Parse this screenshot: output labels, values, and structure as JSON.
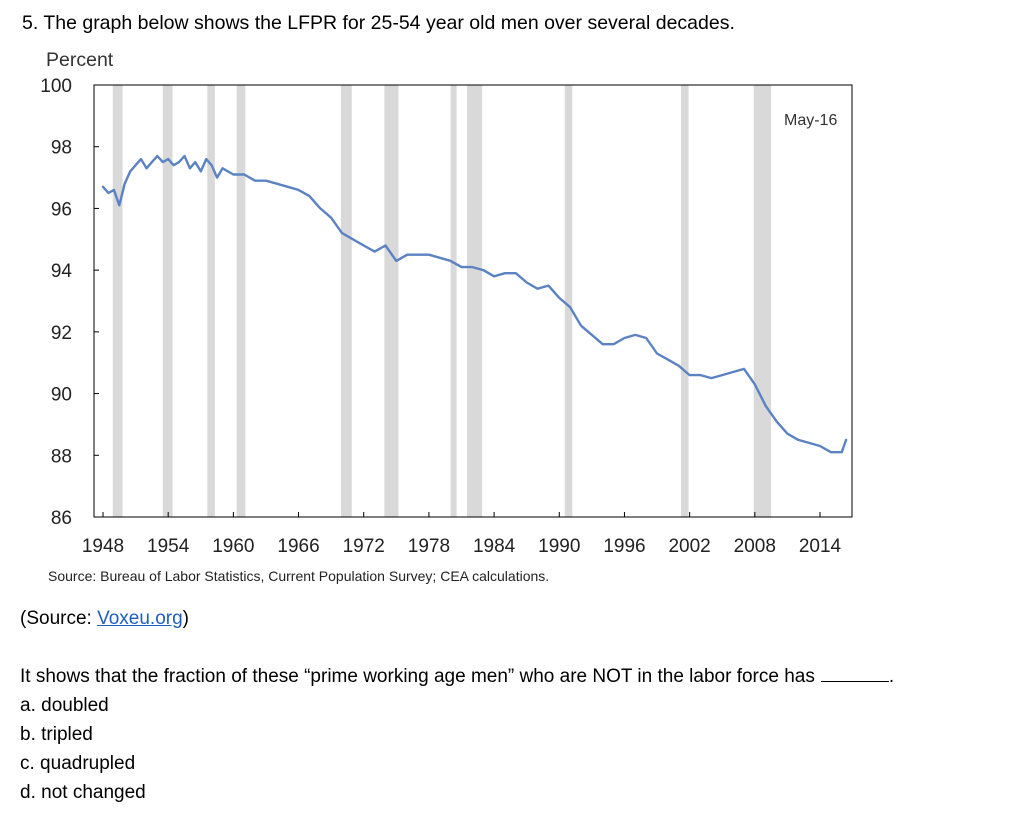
{
  "question": {
    "header": "5. The graph below shows the LFPR for 25-54 year old men over several decades.",
    "source_prefix": "(Source: ",
    "source_link": "Voxeu.org",
    "source_suffix": ")",
    "prompt": "It shows that the fraction of these “prime working age men” who are NOT in the labor force has",
    "prompt_end": ".",
    "choices": [
      "a. doubled",
      "b. tripled",
      "c. quadrupled",
      "d. not changed"
    ]
  },
  "chart_data": {
    "type": "line",
    "ylabel": "Percent",
    "xlabel": "",
    "ylim": [
      86,
      100
    ],
    "xlim": [
      1948,
      2016.5
    ],
    "yticks": [
      "100",
      "98",
      "96",
      "94",
      "92",
      "90",
      "88",
      "86"
    ],
    "xticks": [
      "1948",
      "1954",
      "1960",
      "1966",
      "1972",
      "1978",
      "1984",
      "1990",
      "1996",
      "2002",
      "2008",
      "2014"
    ],
    "annotation": "May-16",
    "source_note": "Source: Bureau of Labor Statistics, Current Population Survey; CEA calculations.",
    "line_color": "#5b83c3",
    "recession_color": "#d9d9d9",
    "recessions": [
      [
        1948.9,
        1949.8
      ],
      [
        1953.5,
        1954.4
      ],
      [
        1957.6,
        1958.3
      ],
      [
        1960.3,
        1961.1
      ],
      [
        1969.9,
        1970.9
      ],
      [
        1973.9,
        1975.2
      ],
      [
        1980.0,
        1980.5
      ],
      [
        1981.5,
        1982.9
      ],
      [
        1990.5,
        1991.2
      ],
      [
        2001.2,
        2001.9
      ],
      [
        2007.9,
        2009.5
      ]
    ],
    "series": [
      {
        "x": [
          1948.0,
          1948.5,
          1949.0,
          1949.5,
          1950.0,
          1950.5,
          1951.0,
          1951.5,
          1952.0,
          1952.5,
          1953.0,
          1953.5,
          1954.0,
          1954.5,
          1955.0,
          1955.5,
          1956.0,
          1956.5,
          1957.0,
          1957.5,
          1958.0,
          1958.5,
          1959.0,
          1960.0,
          1961.0,
          1962.0,
          1963.0,
          1964.0,
          1965.0,
          1966.0,
          1967.0,
          1968.0,
          1969.0,
          1970.0,
          1971.0,
          1972.0,
          1973.0,
          1974.0,
          1975.0,
          1976.0,
          1977.0,
          1978.0,
          1979.0,
          1980.0,
          1981.0,
          1982.0,
          1983.0,
          1984.0,
          1985.0,
          1986.0,
          1987.0,
          1988.0,
          1989.0,
          1990.0,
          1991.0,
          1992.0,
          1993.0,
          1994.0,
          1995.0,
          1996.0,
          1997.0,
          1998.0,
          1999.0,
          2000.0,
          2001.0,
          2002.0,
          2003.0,
          2004.0,
          2005.0,
          2006.0,
          2007.0,
          2008.0,
          2009.0,
          2010.0,
          2011.0,
          2012.0,
          2013.0,
          2014.0,
          2015.0,
          2016.0,
          2016.4
        ],
        "values": [
          96.7,
          96.5,
          96.6,
          96.1,
          96.8,
          97.2,
          97.4,
          97.6,
          97.3,
          97.5,
          97.7,
          97.5,
          97.6,
          97.4,
          97.5,
          97.7,
          97.3,
          97.5,
          97.2,
          97.6,
          97.4,
          97.0,
          97.3,
          97.1,
          97.1,
          96.9,
          96.9,
          96.8,
          96.7,
          96.6,
          96.4,
          96.0,
          95.7,
          95.2,
          95.0,
          94.8,
          94.6,
          94.8,
          94.3,
          94.5,
          94.5,
          94.5,
          94.4,
          94.3,
          94.1,
          94.1,
          94.0,
          93.8,
          93.9,
          93.9,
          93.6,
          93.4,
          93.5,
          93.1,
          92.8,
          92.2,
          91.9,
          91.6,
          91.6,
          91.8,
          91.9,
          91.8,
          91.3,
          91.1,
          90.9,
          90.6,
          90.6,
          90.5,
          90.6,
          90.7,
          90.8,
          90.3,
          89.6,
          89.1,
          88.7,
          88.5,
          88.4,
          88.3,
          88.1,
          88.1,
          88.5
        ]
      }
    ]
  }
}
